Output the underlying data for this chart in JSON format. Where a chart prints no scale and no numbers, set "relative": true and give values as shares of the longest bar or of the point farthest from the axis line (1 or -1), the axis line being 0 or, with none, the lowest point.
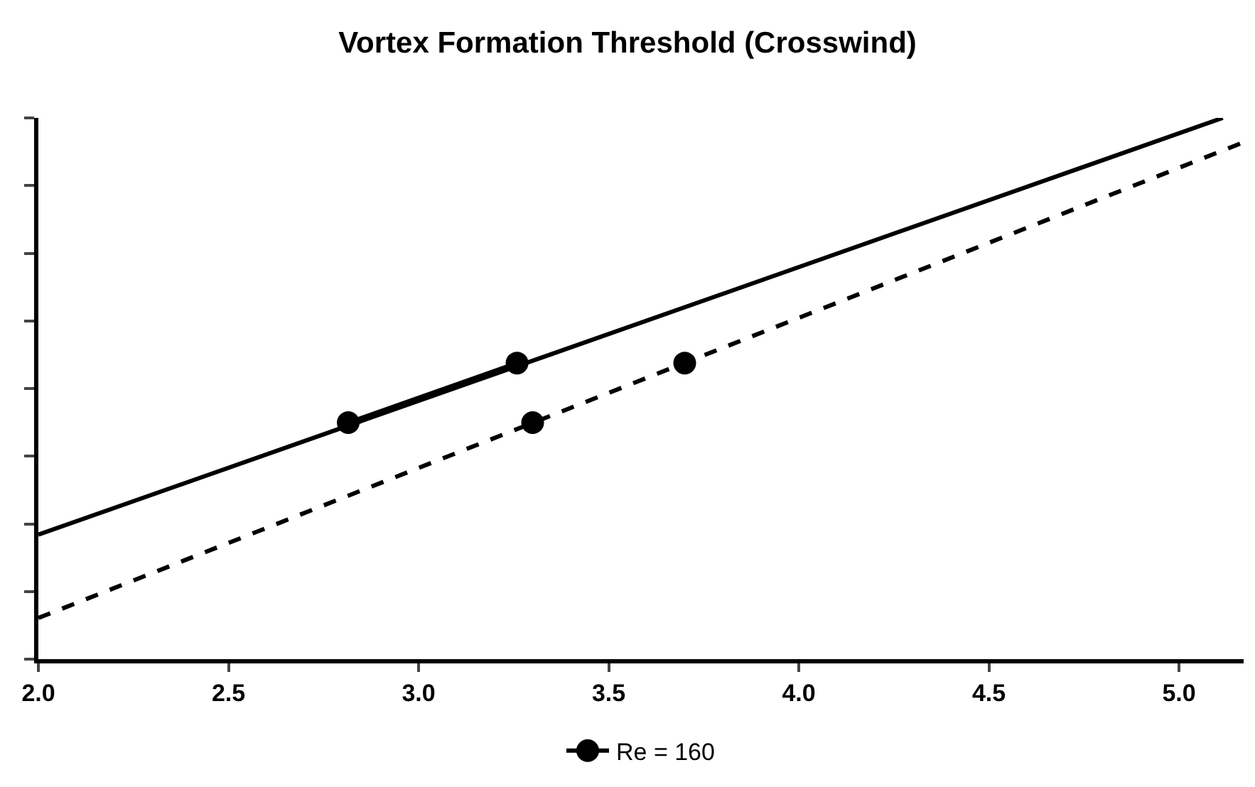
{
  "chart_data": {
    "type": "line",
    "title": "Vortex Formation Threshold (Crosswind)",
    "relative": true,
    "tick_labels": "x",
    "legend": "bottom",
    "xlim": [
      2.0,
      5.17
    ],
    "xticks": [
      {
        "value": 2.0,
        "label": "2.0"
      },
      2.5,
      {
        "value": 3.0,
        "label": "3.0"
      },
      3.5,
      {
        "value": 4.0,
        "label": "4.0"
      },
      4.5,
      {
        "value": 5.0,
        "label": "5.0"
      }
    ],
    "series": [
      {
        "name": "Re = 160",
        "color": "#000000",
        "marker": "circle",
        "line_style": "solid",
        "x": [
          2.815,
          3.259
        ],
        "values": [
          0.437,
          0.547
        ]
      },
      {
        "color": "#000000",
        "marker": "none",
        "line_style": "solid",
        "x": [
          2.0,
          5.115
        ],
        "values": [
          0.23,
          1.0
        ]
      },
      {
        "color": "#000000",
        "marker": "none",
        "line_style": "dashed",
        "x": [
          2.0,
          5.17
        ],
        "values": [
          0.076,
          0.955
        ]
      },
      {
        "type": "scatter",
        "color": "#000000",
        "marker": "circle",
        "x": [
          3.3,
          3.7
        ],
        "values": [
          0.437,
          0.547
        ]
      }
    ]
  }
}
